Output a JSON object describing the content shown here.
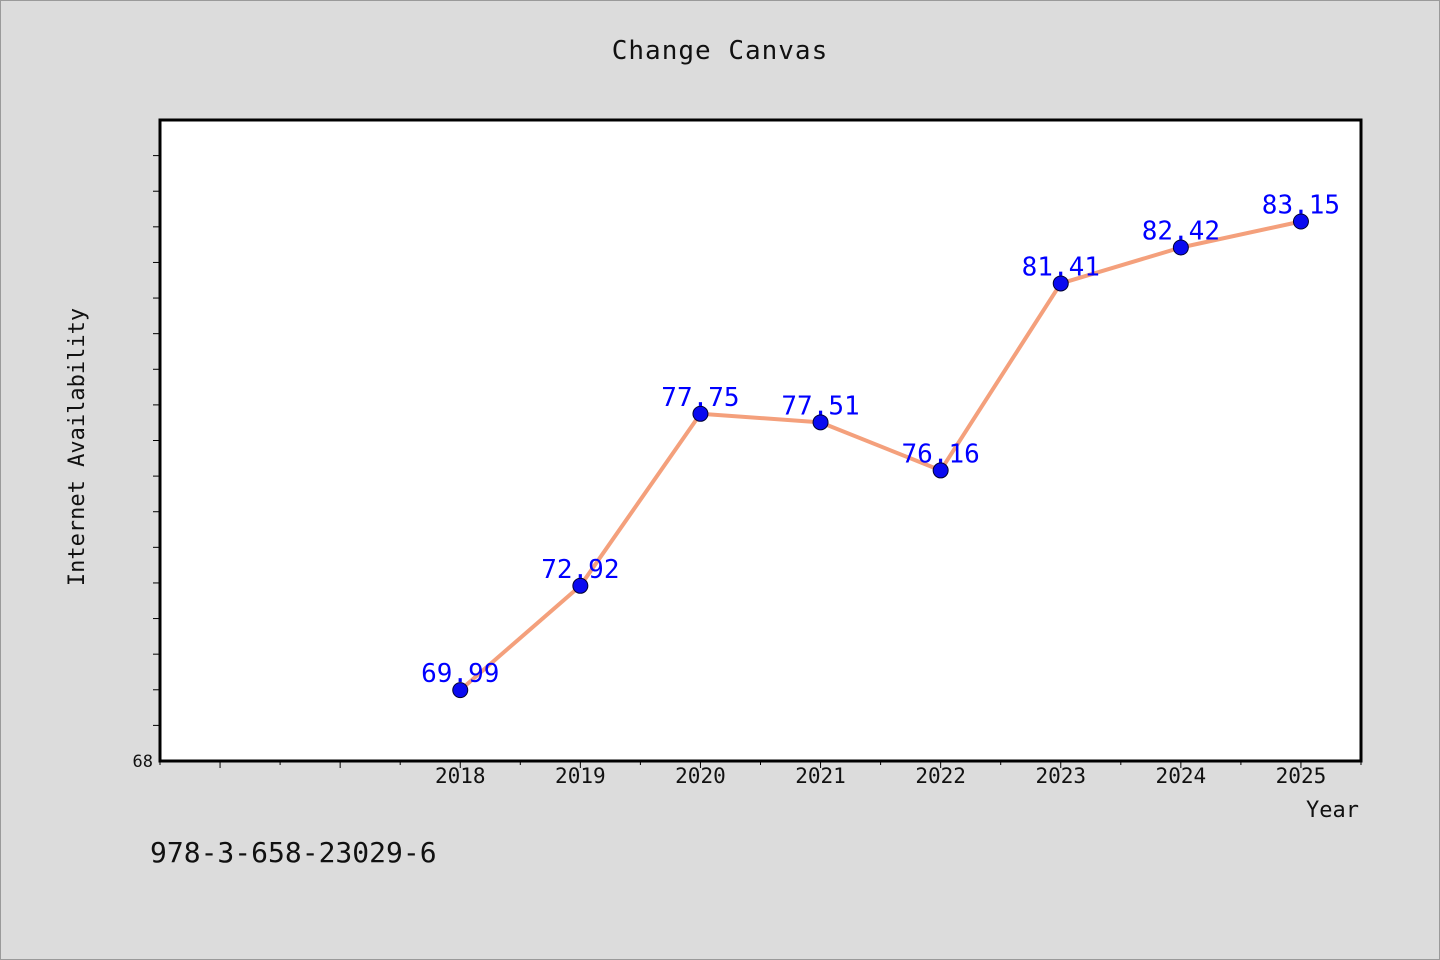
{
  "chart_data": {
    "type": "line",
    "title": "Change Canvas",
    "xlabel": "Year",
    "ylabel": "Internet Availability",
    "x": [
      "2018",
      "2019",
      "2020",
      "2021",
      "2022",
      "2023",
      "2024",
      "2025"
    ],
    "values": [
      69.99,
      72.92,
      77.75,
      77.51,
      76.16,
      81.41,
      82.42,
      83.15
    ],
    "data_labels": [
      "69.99",
      "72.92",
      "77.75",
      "77.51",
      "76.16",
      "81.41",
      "82.42",
      "83.15"
    ],
    "x_range": [
      2015.5,
      2025.5
    ],
    "ylim": [
      68,
      86
    ],
    "y_tick_labels": [
      "68"
    ],
    "grid": false,
    "line_color": "#f4a07c",
    "marker_color": "#0a0af0",
    "label_color": "#0000ff"
  },
  "footer": {
    "isbn": "978-3-658-23029-6"
  }
}
